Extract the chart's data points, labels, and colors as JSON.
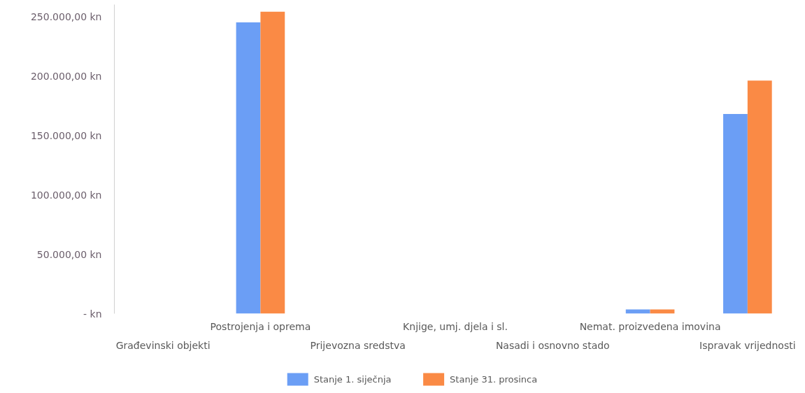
{
  "chart_data": {
    "type": "bar",
    "categories": [
      "Građevinski objekti",
      "Postrojenja i oprema",
      "Prijevozna sredstva",
      "Knjige, umj. djela i sl.",
      "Nasadi i osnovno stado",
      "Nemat. proizvedena imovina",
      "Ispravak vrijednosti"
    ],
    "series": [
      {
        "name": "Stanje 1. siječnja",
        "color": "#6b9ef5",
        "values": [
          0,
          245000,
          0,
          0,
          0,
          3500,
          168000
        ]
      },
      {
        "name": "Stanje 31. prosinca",
        "color": "#fa8a45",
        "values": [
          0,
          254000,
          0,
          0,
          0,
          3500,
          196000
        ]
      }
    ],
    "ylim": [
      0,
      260000
    ],
    "yticks": [
      {
        "value": 0,
        "label": "- kn"
      },
      {
        "value": 50000,
        "label": "50.000,00 kn"
      },
      {
        "value": 100000,
        "label": "100.000,00 kn"
      },
      {
        "value": 150000,
        "label": "150.000,00 kn"
      },
      {
        "value": 200000,
        "label": "200.000,00 kn"
      },
      {
        "value": 250000,
        "label": "250.000,00 kn"
      }
    ],
    "grid": false,
    "legend": "bottom"
  }
}
